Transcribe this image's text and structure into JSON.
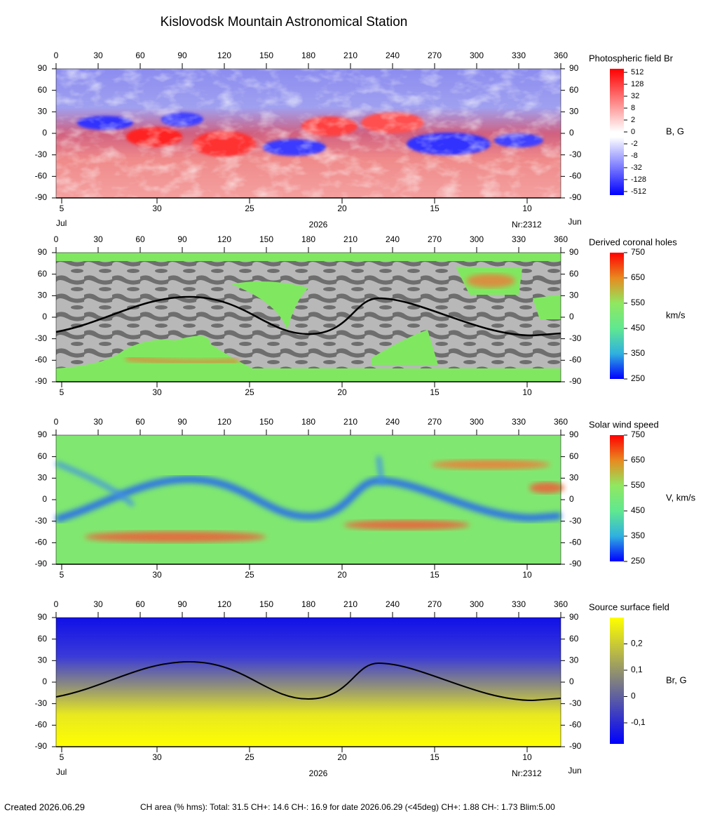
{
  "title": "Kislovodsk Mountain Astronomical Station",
  "chart_data": [
    {
      "type": "map",
      "title": "Photospheric field Br",
      "xlim": [
        0,
        360
      ],
      "xticks": [
        0,
        30,
        60,
        90,
        120,
        150,
        180,
        210,
        240,
        270,
        300,
        330,
        360
      ],
      "ylim": [
        -90,
        90
      ],
      "yticks": [
        90,
        60,
        30,
        0,
        -30,
        -60,
        -90
      ],
      "date_ticks": [
        {
          "value": 4,
          "label": "5"
        },
        {
          "value": 72,
          "label": "30"
        },
        {
          "value": 138,
          "label": "25"
        },
        {
          "value": 204,
          "label": "20"
        },
        {
          "value": 270,
          "label": "15"
        },
        {
          "value": 336,
          "label": "10"
        }
      ],
      "period": {
        "start": "Jul",
        "year": "2026",
        "rotation": "Nr:2312",
        "end": "Jun"
      },
      "colorbar": {
        "label": "B, G",
        "scale": "symlog",
        "colors": [
          "#ff0000",
          "#ffffff",
          "#0000ff"
        ],
        "ticks": [
          512,
          128,
          32,
          8,
          2,
          0,
          -2,
          -8,
          -32,
          -128,
          -512
        ]
      }
    },
    {
      "type": "map",
      "title": "Derived coronal holes",
      "xlim": [
        0,
        360
      ],
      "xticks": [
        0,
        30,
        60,
        90,
        120,
        150,
        180,
        210,
        240,
        270,
        300,
        330,
        360
      ],
      "ylim": [
        -90,
        90
      ],
      "yticks": [
        90,
        60,
        30,
        0,
        -30,
        -60,
        -90
      ],
      "date_ticks": [
        {
          "value": 4,
          "label": "5"
        },
        {
          "value": 72,
          "label": "30"
        },
        {
          "value": 138,
          "label": "25"
        },
        {
          "value": 204,
          "label": "20"
        },
        {
          "value": 270,
          "label": "15"
        },
        {
          "value": 336,
          "label": "10"
        }
      ],
      "colorbar": {
        "label": "km/s",
        "lim": [
          250,
          750
        ],
        "colors": [
          "#ff0000",
          "#e88a20",
          "#90e860",
          "#60e890",
          "#30b0e0",
          "#0000ff"
        ],
        "ticks": [
          750,
          650,
          550,
          450,
          350,
          250
        ]
      }
    },
    {
      "type": "map",
      "title": "Solar wind speed",
      "xlim": [
        0,
        360
      ],
      "xticks": [
        0,
        30,
        60,
        90,
        120,
        150,
        180,
        210,
        240,
        270,
        300,
        330,
        360
      ],
      "ylim": [
        -90,
        90
      ],
      "yticks": [
        90,
        60,
        30,
        0,
        -30,
        -60,
        -90
      ],
      "date_ticks": [
        {
          "value": 4,
          "label": "5"
        },
        {
          "value": 72,
          "label": "30"
        },
        {
          "value": 138,
          "label": "25"
        },
        {
          "value": 204,
          "label": "20"
        },
        {
          "value": 270,
          "label": "15"
        },
        {
          "value": 336,
          "label": "10"
        }
      ],
      "colorbar": {
        "label": "V, km/s",
        "lim": [
          250,
          750
        ],
        "colors": [
          "#ff0000",
          "#e88a20",
          "#90e860",
          "#60e890",
          "#30b0e0",
          "#0000ff"
        ],
        "ticks": [
          750,
          650,
          550,
          450,
          350,
          250
        ]
      }
    },
    {
      "type": "map",
      "title": "Source surface field",
      "xlim": [
        0,
        360
      ],
      "xticks": [
        0,
        30,
        60,
        90,
        120,
        150,
        180,
        210,
        240,
        270,
        300,
        330,
        360
      ],
      "ylim": [
        -90,
        90
      ],
      "yticks": [
        90,
        60,
        30,
        0,
        -30,
        -60,
        -90
      ],
      "date_ticks": [
        {
          "value": 4,
          "label": "5"
        },
        {
          "value": 72,
          "label": "30"
        },
        {
          "value": 138,
          "label": "25"
        },
        {
          "value": 204,
          "label": "20"
        },
        {
          "value": 270,
          "label": "15"
        },
        {
          "value": 336,
          "label": "10"
        }
      ],
      "period": {
        "start": "Jul",
        "year": "2026",
        "rotation": "Nr:2312",
        "end": "Jun"
      },
      "colorbar": {
        "label": "Br, G",
        "lim": [
          -0.18,
          0.3
        ],
        "colors": [
          "#ffff00",
          "#808080",
          "#0000ff"
        ],
        "ticks": [
          {
            "value": 0.2,
            "label": "0,2"
          },
          {
            "value": 0.1,
            "label": "0,1"
          },
          0,
          {
            "value": -0.1,
            "label": "-0,1"
          }
        ]
      }
    }
  ],
  "footer": {
    "created": "Created  2026.06.29",
    "summary": "CH area (% hms): Total: 31.5 CH+: 14.6  CH-: 16.9 for date 2026.06.29 (<45deg) CH+: 1.88   CH-: 1.73 Blim:5.00"
  }
}
